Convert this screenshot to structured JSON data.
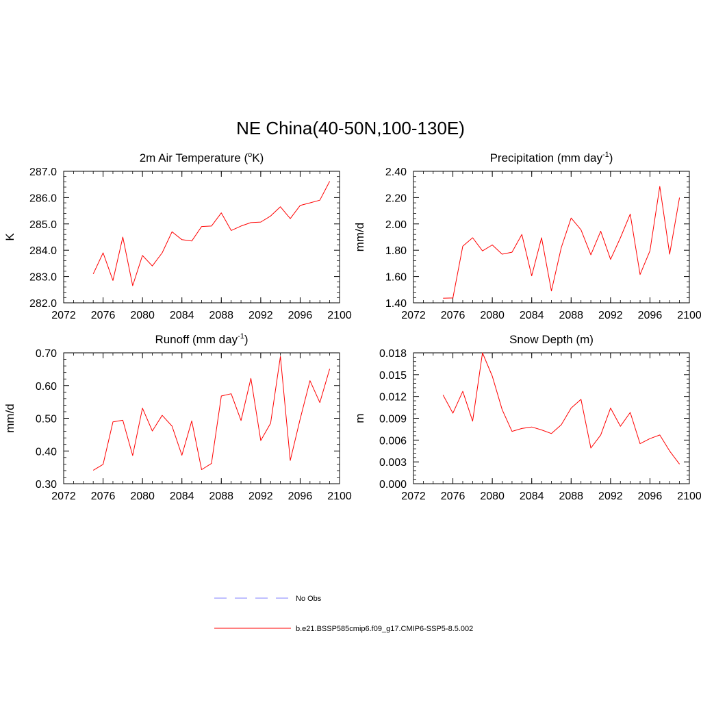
{
  "figure": {
    "title": "NE China(40-50N,100-130E)"
  },
  "legend": {
    "items": [
      {
        "label": "No Obs",
        "color": "#9999ff",
        "style": "dashed"
      },
      {
        "label": "b.e21.BSSP585cmip6.f09_g17.CMIP6-SSP5-8.5.002",
        "color": "#ff0000",
        "style": "solid"
      }
    ]
  },
  "chart_data": [
    {
      "type": "line",
      "title": "2m Air Temperature (",
      "title_sup": "o",
      "title_after": "K)",
      "ylabel": "K",
      "xlim": [
        2072,
        2100
      ],
      "ylim": [
        282.0,
        287.0
      ],
      "xticks": [
        2072,
        2076,
        2080,
        2084,
        2088,
        2092,
        2096,
        2100
      ],
      "xtick_labels": [
        "2072",
        "2076",
        "2080",
        "2084",
        "2088",
        "2092",
        "2096",
        "2100"
      ],
      "yticks": [
        282.0,
        283.0,
        284.0,
        285.0,
        286.0,
        287.0
      ],
      "ytick_labels": [
        "282.0",
        "283.0",
        "284.0",
        "285.0",
        "286.0",
        "287.0"
      ],
      "series": [
        {
          "color": "#ff0000",
          "x": [
            2075,
            2076,
            2077,
            2078,
            2079,
            2080,
            2081,
            2082,
            2083,
            2084,
            2085,
            2086,
            2087,
            2088,
            2089,
            2090,
            2091,
            2092,
            2093,
            2094,
            2095,
            2096,
            2097,
            2098,
            2099
          ],
          "y": [
            283.1,
            283.9,
            282.85,
            284.5,
            282.65,
            283.8,
            283.4,
            283.9,
            284.7,
            284.4,
            284.35,
            284.9,
            284.92,
            285.42,
            284.75,
            284.92,
            285.05,
            285.07,
            285.3,
            285.65,
            285.2,
            285.7,
            285.8,
            285.9,
            286.62
          ]
        }
      ]
    },
    {
      "type": "line",
      "title": "Precipitation (mm day",
      "title_sup": "-1",
      "title_after": ")",
      "ylabel": "mm/d",
      "xlim": [
        2072,
        2100
      ],
      "ylim": [
        1.4,
        2.4
      ],
      "xticks": [
        2072,
        2076,
        2080,
        2084,
        2088,
        2092,
        2096,
        2100
      ],
      "xtick_labels": [
        "2072",
        "2076",
        "2080",
        "2084",
        "2088",
        "2092",
        "2096",
        "2100"
      ],
      "yticks": [
        1.4,
        1.6,
        1.8,
        2.0,
        2.2,
        2.4
      ],
      "ytick_labels": [
        "1.40",
        "1.60",
        "1.80",
        "2.00",
        "2.20",
        "2.40"
      ],
      "series": [
        {
          "color": "#ff0000",
          "x": [
            2075,
            2076,
            2077,
            2078,
            2079,
            2080,
            2081,
            2082,
            2083,
            2084,
            2085,
            2086,
            2087,
            2088,
            2089,
            2090,
            2091,
            2092,
            2093,
            2094,
            2095,
            2096,
            2097,
            2098,
            2099
          ],
          "y": [
            1.435,
            1.437,
            1.83,
            1.895,
            1.795,
            1.84,
            1.77,
            1.785,
            1.92,
            1.605,
            1.895,
            1.49,
            1.82,
            2.045,
            1.955,
            1.765,
            1.945,
            1.73,
            1.895,
            2.075,
            1.615,
            1.795,
            2.285,
            1.77,
            2.2
          ]
        }
      ]
    },
    {
      "type": "line",
      "title": "Runoff (mm day",
      "title_sup": "-1",
      "title_after": ")",
      "ylabel": "mm/d",
      "xlim": [
        2072,
        2100
      ],
      "ylim": [
        0.3,
        0.7
      ],
      "xticks": [
        2072,
        2076,
        2080,
        2084,
        2088,
        2092,
        2096,
        2100
      ],
      "xtick_labels": [
        "2072",
        "2076",
        "2080",
        "2084",
        "2088",
        "2092",
        "2096",
        "2100"
      ],
      "yticks": [
        0.3,
        0.4,
        0.5,
        0.6,
        0.7
      ],
      "ytick_labels": [
        "0.30",
        "0.40",
        "0.50",
        "0.60",
        "0.70"
      ],
      "series": [
        {
          "color": "#ff0000",
          "x": [
            2075,
            2076,
            2077,
            2078,
            2079,
            2080,
            2081,
            2082,
            2083,
            2084,
            2085,
            2086,
            2087,
            2088,
            2089,
            2090,
            2091,
            2092,
            2093,
            2094,
            2095,
            2096,
            2097,
            2098,
            2099
          ],
          "y": [
            0.341,
            0.359,
            0.489,
            0.494,
            0.386,
            0.531,
            0.461,
            0.509,
            0.476,
            0.387,
            0.492,
            0.343,
            0.362,
            0.568,
            0.575,
            0.493,
            0.622,
            0.432,
            0.485,
            0.689,
            0.371,
            0.497,
            0.615,
            0.548,
            0.651
          ]
        }
      ]
    },
    {
      "type": "line",
      "title": "Snow Depth (m)",
      "title_sup": "",
      "title_after": "",
      "ylabel": "m",
      "xlim": [
        2072,
        2100
      ],
      "ylim": [
        0.0,
        0.018
      ],
      "xticks": [
        2072,
        2076,
        2080,
        2084,
        2088,
        2092,
        2096,
        2100
      ],
      "xtick_labels": [
        "2072",
        "2076",
        "2080",
        "2084",
        "2088",
        "2092",
        "2096",
        "2100"
      ],
      "yticks": [
        0.0,
        0.003,
        0.006,
        0.009,
        0.012,
        0.015,
        0.018
      ],
      "ytick_labels": [
        "0.000",
        "0.003",
        "0.006",
        "0.009",
        "0.012",
        "0.015",
        "0.018"
      ],
      "series": [
        {
          "color": "#ff0000",
          "x": [
            2075,
            2076,
            2077,
            2078,
            2079,
            2080,
            2081,
            2082,
            2083,
            2084,
            2085,
            2086,
            2087,
            2088,
            2089,
            2090,
            2091,
            2092,
            2093,
            2094,
            2095,
            2096,
            2097,
            2098,
            2099
          ],
          "y": [
            0.0122,
            0.0097,
            0.0127,
            0.0086,
            0.018,
            0.0148,
            0.0102,
            0.0072,
            0.0076,
            0.0078,
            0.0074,
            0.0069,
            0.0081,
            0.0104,
            0.0116,
            0.0049,
            0.0067,
            0.0104,
            0.0079,
            0.0098,
            0.0055,
            0.0062,
            0.0067,
            0.0045,
            0.0027
          ]
        }
      ]
    }
  ]
}
